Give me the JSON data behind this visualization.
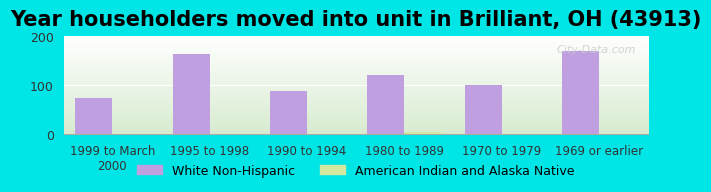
{
  "title": "Year householders moved into unit in Brilliant, OH (43913)",
  "categories": [
    "1999 to March\n2000",
    "1995 to 1998",
    "1990 to 1994",
    "1980 to 1989",
    "1970 to 1979",
    "1969 or earlier"
  ],
  "white_values": [
    75,
    163,
    88,
    120,
    100,
    170
  ],
  "native_values": [
    0,
    0,
    0,
    4,
    0,
    0
  ],
  "bar_color_white": "#bf9fdf",
  "bar_color_native": "#d4e8a0",
  "background_outer": "#00e5e5",
  "background_inner_top": "#ffffff",
  "background_inner_bottom": "#d8ecd0",
  "ylim": [
    0,
    200
  ],
  "yticks": [
    0,
    100,
    200
  ],
  "title_fontsize": 15,
  "legend_labels": [
    "White Non-Hispanic",
    "American Indian and Alaska Native"
  ],
  "watermark": "City-Data.com"
}
